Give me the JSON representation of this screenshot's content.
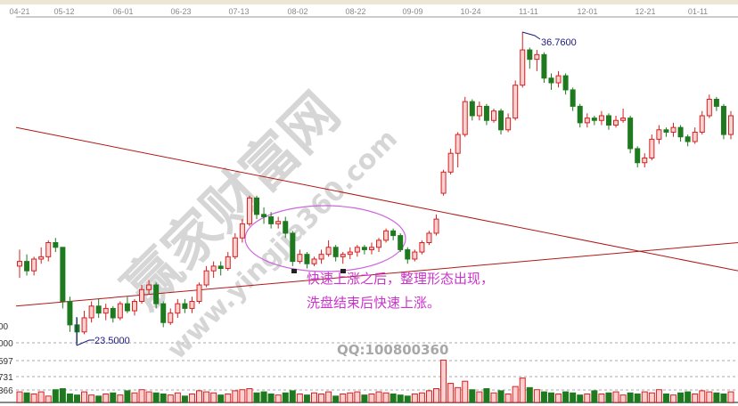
{
  "chart_data": {
    "type": "candlestick",
    "x_tick_labels": [
      "04-21",
      "05-12",
      "06-01",
      "06-23",
      "07-13",
      "08-02",
      "08-22",
      "09-09",
      "10-24",
      "11-11",
      "12-01",
      "12-21",
      "01-11"
    ],
    "price_range": [
      23.5,
      36.76
    ],
    "marked_low": "23.5000",
    "marked_high": "36.7600",
    "volume_axis_labels": [
      "000",
      "597",
      "731",
      "366"
    ],
    "colors": {
      "up": "#d42020",
      "up_fill": "#ffd0d0",
      "down": "#1f7a1f",
      "trendline": "#b01818",
      "ellipse": "#cc66dd",
      "annotation": "#cc33cc"
    },
    "candles_ohlc": [
      [
        26.8,
        27.5,
        26.3,
        27.0
      ],
      [
        27.0,
        27.3,
        26.4,
        26.6
      ],
      [
        26.6,
        27.2,
        26.4,
        27.1
      ],
      [
        27.1,
        27.6,
        26.9,
        27.2
      ],
      [
        27.2,
        27.9,
        27.0,
        27.8
      ],
      [
        27.8,
        28.0,
        27.4,
        27.6
      ],
      [
        27.6,
        27.6,
        25.0,
        25.3
      ],
      [
        25.3,
        25.5,
        24.0,
        24.3
      ],
      [
        24.3,
        24.6,
        23.5,
        24.0
      ],
      [
        24.0,
        24.9,
        23.9,
        24.6
      ],
      [
        24.6,
        25.3,
        24.4,
        25.1
      ],
      [
        25.1,
        25.4,
        24.6,
        24.8
      ],
      [
        24.8,
        25.2,
        24.5,
        25.0
      ],
      [
        25.0,
        25.1,
        24.4,
        24.6
      ],
      [
        24.6,
        25.3,
        24.5,
        25.2
      ],
      [
        25.2,
        25.5,
        24.8,
        24.9
      ],
      [
        24.9,
        25.4,
        24.7,
        25.3
      ],
      [
        25.3,
        26.0,
        25.2,
        25.8
      ],
      [
        25.8,
        26.2,
        25.6,
        26.0
      ],
      [
        26.0,
        26.1,
        25.0,
        25.2
      ],
      [
        25.2,
        25.3,
        24.2,
        24.4
      ],
      [
        24.4,
        25.0,
        24.3,
        24.8
      ],
      [
        24.8,
        25.4,
        24.6,
        25.2
      ],
      [
        25.2,
        25.4,
        24.8,
        25.0
      ],
      [
        25.0,
        25.5,
        24.8,
        25.3
      ],
      [
        25.3,
        26.1,
        25.2,
        26.0
      ],
      [
        26.0,
        26.8,
        25.9,
        26.6
      ],
      [
        26.6,
        27.0,
        26.3,
        26.8
      ],
      [
        26.8,
        27.0,
        26.4,
        26.7
      ],
      [
        26.7,
        27.4,
        26.6,
        27.2
      ],
      [
        27.2,
        28.2,
        27.1,
        28.0
      ],
      [
        28.0,
        28.8,
        27.8,
        28.6
      ],
      [
        28.6,
        29.8,
        28.5,
        29.7
      ],
      [
        29.7,
        29.8,
        28.8,
        29.0
      ],
      [
        29.0,
        29.3,
        28.6,
        28.9
      ],
      [
        28.9,
        29.1,
        28.4,
        28.6
      ],
      [
        28.6,
        28.9,
        28.4,
        28.7
      ],
      [
        28.7,
        28.9,
        28.0,
        28.2
      ],
      [
        28.2,
        28.3,
        26.8,
        27.0
      ],
      [
        27.0,
        27.5,
        26.9,
        27.3
      ],
      [
        27.3,
        27.4,
        26.7,
        26.9
      ],
      [
        26.9,
        27.2,
        26.8,
        27.1
      ],
      [
        27.1,
        27.5,
        26.9,
        27.3
      ],
      [
        27.3,
        27.9,
        27.2,
        27.6
      ],
      [
        27.6,
        27.7,
        27.0,
        27.2
      ],
      [
        27.2,
        27.4,
        26.9,
        27.3
      ],
      [
        27.3,
        27.6,
        27.1,
        27.4
      ],
      [
        27.4,
        27.7,
        27.2,
        27.6
      ],
      [
        27.6,
        27.7,
        27.3,
        27.5
      ],
      [
        27.5,
        27.8,
        27.3,
        27.6
      ],
      [
        27.6,
        28.0,
        27.4,
        27.9
      ],
      [
        27.9,
        28.4,
        27.8,
        28.3
      ],
      [
        28.3,
        28.4,
        27.9,
        28.1
      ],
      [
        28.1,
        28.2,
        27.4,
        27.5
      ],
      [
        27.5,
        27.6,
        26.9,
        27.1
      ],
      [
        27.1,
        27.5,
        27.0,
        27.4
      ],
      [
        27.4,
        27.9,
        27.3,
        27.8
      ],
      [
        27.8,
        28.3,
        27.7,
        28.2
      ],
      [
        28.2,
        29.0,
        28.1,
        28.8
      ],
      [
        29.9,
        30.9,
        29.8,
        30.8
      ],
      [
        30.8,
        31.8,
        30.7,
        31.6
      ],
      [
        31.6,
        32.5,
        31.0,
        32.4
      ],
      [
        32.4,
        34.0,
        32.3,
        33.8
      ],
      [
        33.8,
        33.9,
        33.0,
        33.2
      ],
      [
        33.2,
        33.8,
        33.0,
        33.6
      ],
      [
        33.6,
        33.7,
        32.8,
        33.0
      ],
      [
        33.0,
        33.5,
        32.9,
        33.4
      ],
      [
        33.4,
        33.5,
        32.4,
        32.6
      ],
      [
        32.6,
        33.3,
        32.5,
        33.1
      ],
      [
        33.1,
        34.7,
        33.0,
        34.5
      ],
      [
        34.5,
        36.76,
        34.4,
        36.0
      ],
      [
        36.0,
        36.1,
        35.2,
        35.6
      ],
      [
        35.6,
        36.0,
        35.1,
        35.8
      ],
      [
        35.8,
        35.9,
        34.6,
        34.8
      ],
      [
        34.8,
        35.0,
        34.3,
        34.6
      ],
      [
        34.6,
        35.1,
        34.4,
        34.9
      ],
      [
        34.9,
        35.0,
        34.1,
        34.3
      ],
      [
        34.3,
        34.4,
        33.4,
        33.6
      ],
      [
        33.6,
        33.7,
        32.7,
        32.9
      ],
      [
        32.9,
        33.3,
        32.7,
        33.1
      ],
      [
        33.1,
        33.2,
        32.8,
        33.0
      ],
      [
        33.0,
        33.4,
        32.8,
        33.2
      ],
      [
        33.2,
        33.3,
        32.6,
        32.8
      ],
      [
        32.8,
        33.2,
        32.7,
        33.0
      ],
      [
        33.0,
        33.5,
        32.9,
        33.1
      ],
      [
        33.1,
        33.2,
        31.6,
        31.8
      ],
      [
        31.8,
        31.9,
        31.0,
        31.2
      ],
      [
        31.2,
        31.6,
        31.0,
        31.4
      ],
      [
        31.4,
        32.4,
        31.3,
        32.2
      ],
      [
        32.2,
        32.8,
        32.0,
        32.6
      ],
      [
        32.6,
        32.7,
        32.3,
        32.5
      ],
      [
        32.5,
        32.9,
        32.3,
        32.7
      ],
      [
        32.7,
        32.8,
        32.1,
        32.3
      ],
      [
        32.3,
        32.4,
        31.9,
        32.1
      ],
      [
        32.1,
        32.7,
        32.0,
        32.5
      ],
      [
        32.5,
        33.4,
        32.4,
        33.2
      ],
      [
        33.2,
        34.1,
        33.1,
        33.9
      ],
      [
        33.9,
        34.0,
        33.4,
        33.6
      ],
      [
        33.6,
        33.7,
        32.2,
        32.4
      ],
      [
        32.4,
        33.4,
        32.2,
        33.2
      ]
    ],
    "volume": [
      1.0,
      0.9,
      0.8,
      1.0,
      0.6,
      1.2,
      1.3,
      0.8,
      0.7,
      1.0,
      0.7,
      0.6,
      0.8,
      0.9,
      0.7,
      1.1,
      0.9,
      1.2,
      1.0,
      0.9,
      0.8,
      0.7,
      0.9,
      0.6,
      0.8,
      1.1,
      1.0,
      0.9,
      0.7,
      0.8,
      1.1,
      1.2,
      1.3,
      0.9,
      1.0,
      0.8,
      0.7,
      0.9,
      1.1,
      0.8,
      0.7,
      0.9,
      0.8,
      1.0,
      0.6,
      0.8,
      0.9,
      1.0,
      0.7,
      0.8,
      1.0,
      0.9,
      0.8,
      0.7,
      0.6,
      0.8,
      0.9,
      1.1,
      1.3,
      4.0,
      1.8,
      1.4,
      2.0,
      1.2,
      1.0,
      1.3,
      0.9,
      1.1,
      0.8,
      1.5,
      2.3,
      1.4,
      1.2,
      1.0,
      0.9,
      0.8,
      1.0,
      0.9,
      0.7,
      0.8,
      1.1,
      0.8,
      0.9,
      1.0,
      0.7,
      0.9,
      0.8,
      1.0,
      0.9,
      1.2,
      0.8,
      0.7,
      0.9,
      1.0,
      0.8,
      1.1,
      1.0,
      0.9,
      0.8,
      1.0
    ],
    "trendlines": [
      {
        "from": [
          "04-21",
          32.7
        ],
        "to": [
          "01-11+",
          26.6
        ]
      },
      {
        "from": [
          "04-21",
          25.1
        ],
        "to": [
          "01-11+",
          27.8
        ]
      }
    ]
  },
  "annotation": {
    "line1": "快速上涨之后，整理形态出现，",
    "line2": "洗盘结束后快速上涨。"
  },
  "contact": "QQ:100800360",
  "watermark": {
    "main": "赢家财富网",
    "url": "www.yingjia360.com"
  },
  "left_price_label": "00"
}
